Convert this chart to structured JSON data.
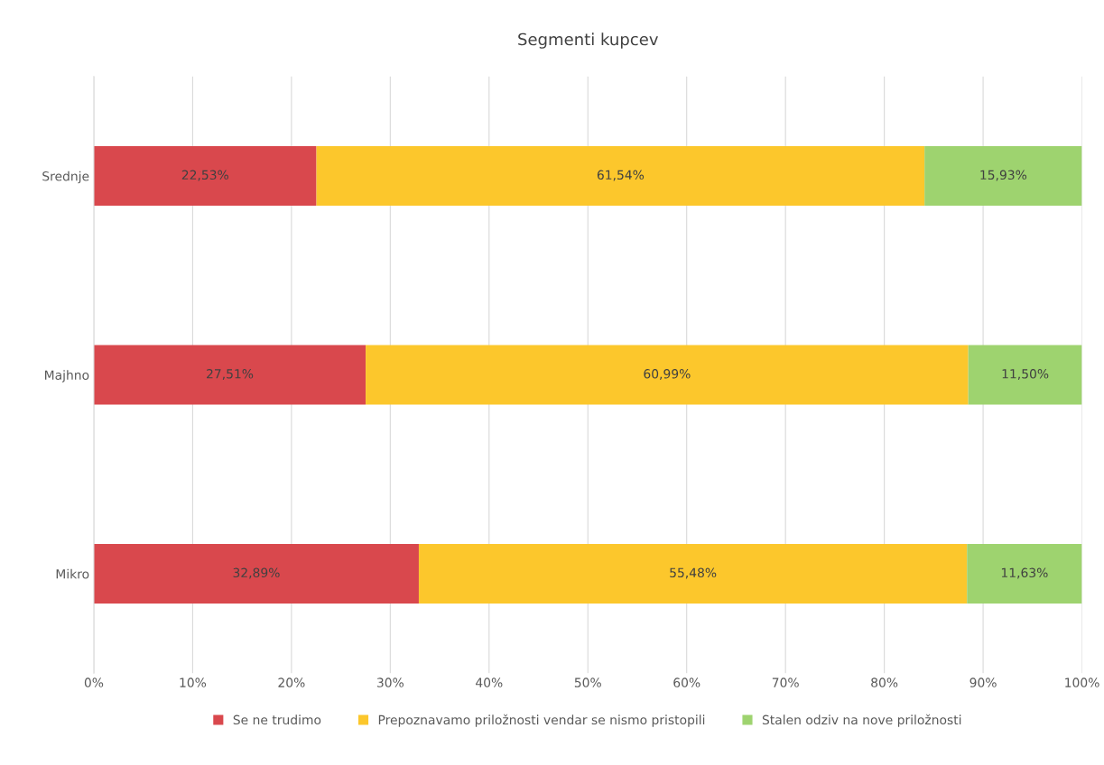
{
  "chart_data": {
    "type": "bar",
    "orientation": "horizontal",
    "stacked": true,
    "title": "Segmenti kupcev",
    "categories": [
      "Srednje",
      "Majhno",
      "Mikro"
    ],
    "series": [
      {
        "name": "Se ne trudimo",
        "color": "#d9484d",
        "values": [
          22.53,
          27.51,
          32.89
        ],
        "value_labels": [
          "22,53%",
          "27,51%",
          "32,89%"
        ]
      },
      {
        "name": "Prepoznavamo priložnosti vendar se nismo pristopili",
        "color": "#fcc72c",
        "values": [
          61.54,
          60.99,
          55.48
        ],
        "value_labels": [
          "61,54%",
          "60,99%",
          "55,48%"
        ]
      },
      {
        "name": "Stalen odziv na nove priložnosti",
        "color": "#9ed36f",
        "values": [
          15.93,
          11.5,
          11.63
        ],
        "value_labels": [
          "15,93%",
          "11,50%",
          "11,63%"
        ]
      }
    ],
    "xlim": [
      0,
      100
    ],
    "xticks": [
      {
        "value": 0,
        "label": "0%"
      },
      {
        "value": 10,
        "label": "10%"
      },
      {
        "value": 20,
        "label": "20%"
      },
      {
        "value": 30,
        "label": "30%"
      },
      {
        "value": 40,
        "label": "40%"
      },
      {
        "value": 50,
        "label": "50%"
      },
      {
        "value": 60,
        "label": "60%"
      },
      {
        "value": 70,
        "label": "70%"
      },
      {
        "value": 80,
        "label": "80%"
      },
      {
        "value": 90,
        "label": "90%"
      },
      {
        "value": 100,
        "label": "100%"
      }
    ],
    "grid": "x",
    "legend": "bottom"
  }
}
